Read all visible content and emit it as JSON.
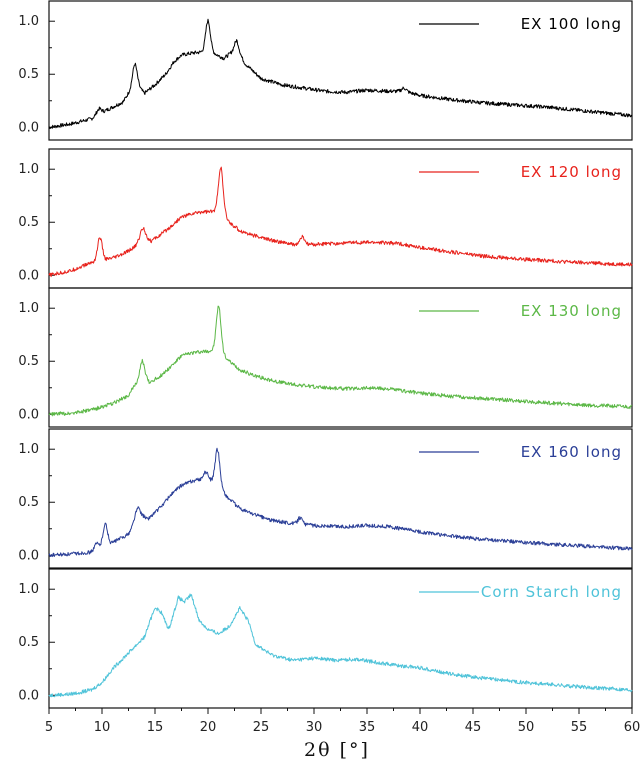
{
  "chart_data": {
    "type": "line",
    "xlabel": "2θ [°]",
    "xlim": [
      5,
      60
    ],
    "x_ticks": [
      "5",
      "10",
      "15",
      "20",
      "25",
      "30",
      "35",
      "40",
      "45",
      "50",
      "55",
      "60"
    ],
    "y_ticks": [
      "0.0",
      "0.5",
      "1.0"
    ],
    "ylim": [
      -0.12,
      1.2
    ],
    "legend_position": "top-right",
    "series": [
      {
        "name": "EX 100 long",
        "color": "#000000",
        "peaks": [
          [
            9.7,
            0.05
          ],
          [
            13.1,
            0.18
          ],
          [
            20.0,
            0.3
          ],
          [
            22.7,
            0.08
          ],
          [
            38.5,
            0.03
          ]
        ],
        "points": [
          [
            5,
            0.0
          ],
          [
            7,
            0.03
          ],
          [
            9,
            0.08
          ],
          [
            10,
            0.14
          ],
          [
            11,
            0.19
          ],
          [
            12,
            0.24
          ],
          [
            13.1,
            0.42
          ],
          [
            14,
            0.32
          ],
          [
            15,
            0.4
          ],
          [
            16,
            0.5
          ],
          [
            16.8,
            0.62
          ],
          [
            17.5,
            0.68
          ],
          [
            18.5,
            0.7
          ],
          [
            19.5,
            0.71
          ],
          [
            20.5,
            0.7
          ],
          [
            21.5,
            0.65
          ],
          [
            22.7,
            0.74
          ],
          [
            23.5,
            0.6
          ],
          [
            25,
            0.46
          ],
          [
            27,
            0.4
          ],
          [
            29,
            0.37
          ],
          [
            31,
            0.34
          ],
          [
            33,
            0.33
          ],
          [
            35,
            0.35
          ],
          [
            37,
            0.34
          ],
          [
            38.5,
            0.34
          ],
          [
            40,
            0.3
          ],
          [
            43,
            0.26
          ],
          [
            46,
            0.23
          ],
          [
            49,
            0.21
          ],
          [
            52,
            0.19
          ],
          [
            55,
            0.16
          ],
          [
            58,
            0.13
          ],
          [
            60,
            0.11
          ]
        ]
      },
      {
        "name": "EX 120 long",
        "color": "#e8231d",
        "peaks": [
          [
            9.8,
            0.22
          ],
          [
            13.8,
            0.08
          ],
          [
            21.2,
            0.4
          ],
          [
            28.9,
            0.07
          ]
        ],
        "points": [
          [
            5,
            0.0
          ],
          [
            6,
            0.02
          ],
          [
            7,
            0.04
          ],
          [
            8,
            0.08
          ],
          [
            9,
            0.12
          ],
          [
            10,
            0.14
          ],
          [
            11,
            0.16
          ],
          [
            12,
            0.2
          ],
          [
            13,
            0.26
          ],
          [
            14,
            0.38
          ],
          [
            14.6,
            0.32
          ],
          [
            15.5,
            0.38
          ],
          [
            16.5,
            0.46
          ],
          [
            17.5,
            0.55
          ],
          [
            18.5,
            0.58
          ],
          [
            19.5,
            0.6
          ],
          [
            20.5,
            0.6
          ],
          [
            21.2,
            0.62
          ],
          [
            22,
            0.5
          ],
          [
            23,
            0.42
          ],
          [
            24.5,
            0.37
          ],
          [
            26,
            0.33
          ],
          [
            28,
            0.29
          ],
          [
            30,
            0.29
          ],
          [
            32,
            0.3
          ],
          [
            34,
            0.31
          ],
          [
            36,
            0.31
          ],
          [
            38,
            0.3
          ],
          [
            40,
            0.26
          ],
          [
            43,
            0.22
          ],
          [
            46,
            0.18
          ],
          [
            50,
            0.15
          ],
          [
            55,
            0.12
          ],
          [
            60,
            0.1
          ]
        ]
      },
      {
        "name": "EX 130 long",
        "color": "#5cb847",
        "peaks": [
          [
            13.8,
            0.12
          ],
          [
            21.0,
            0.4
          ]
        ],
        "points": [
          [
            5,
            0.0
          ],
          [
            7,
            0.01
          ],
          [
            9,
            0.04
          ],
          [
            11,
            0.1
          ],
          [
            12.5,
            0.18
          ],
          [
            13.8,
            0.38
          ],
          [
            14.5,
            0.3
          ],
          [
            15.5,
            0.36
          ],
          [
            16.5,
            0.45
          ],
          [
            17.5,
            0.55
          ],
          [
            18.5,
            0.58
          ],
          [
            19.5,
            0.59
          ],
          [
            20.5,
            0.6
          ],
          [
            21,
            0.62
          ],
          [
            22,
            0.5
          ],
          [
            23,
            0.42
          ],
          [
            24.5,
            0.36
          ],
          [
            26,
            0.32
          ],
          [
            28,
            0.28
          ],
          [
            30,
            0.26
          ],
          [
            33,
            0.24
          ],
          [
            35,
            0.25
          ],
          [
            37,
            0.24
          ],
          [
            40,
            0.2
          ],
          [
            43,
            0.17
          ],
          [
            46,
            0.15
          ],
          [
            50,
            0.12
          ],
          [
            55,
            0.09
          ],
          [
            60,
            0.07
          ]
        ]
      },
      {
        "name": "EX 160 long",
        "color": "#2b3f97",
        "peaks": [
          [
            9.5,
            0.06
          ],
          [
            10.3,
            0.21
          ],
          [
            13.3,
            0.07
          ],
          [
            19.8,
            0.07
          ],
          [
            20.9,
            0.32
          ],
          [
            28.7,
            0.06
          ]
        ],
        "points": [
          [
            5,
            0.0
          ],
          [
            7,
            0.01
          ],
          [
            9,
            0.03
          ],
          [
            10,
            0.07
          ],
          [
            11,
            0.12
          ],
          [
            12.5,
            0.2
          ],
          [
            13.5,
            0.4
          ],
          [
            14.3,
            0.34
          ],
          [
            15.5,
            0.45
          ],
          [
            16.5,
            0.57
          ],
          [
            17.5,
            0.66
          ],
          [
            18.5,
            0.7
          ],
          [
            19.5,
            0.72
          ],
          [
            20.3,
            0.7
          ],
          [
            20.9,
            0.68
          ],
          [
            21.8,
            0.55
          ],
          [
            23,
            0.44
          ],
          [
            24.5,
            0.38
          ],
          [
            26,
            0.33
          ],
          [
            28,
            0.3
          ],
          [
            30,
            0.28
          ],
          [
            33,
            0.27
          ],
          [
            35,
            0.28
          ],
          [
            37,
            0.27
          ],
          [
            40,
            0.22
          ],
          [
            43,
            0.18
          ],
          [
            46,
            0.15
          ],
          [
            50,
            0.12
          ],
          [
            55,
            0.09
          ],
          [
            60,
            0.06
          ]
        ]
      },
      {
        "name": "Corn Starch long",
        "color": "#4fc3d9",
        "peaks": [],
        "points": [
          [
            5,
            0.0
          ],
          [
            7,
            0.01
          ],
          [
            9,
            0.05
          ],
          [
            10,
            0.12
          ],
          [
            11,
            0.25
          ],
          [
            12,
            0.35
          ],
          [
            13,
            0.45
          ],
          [
            14,
            0.55
          ],
          [
            15,
            0.83
          ],
          [
            15.6,
            0.78
          ],
          [
            16.3,
            0.62
          ],
          [
            17.2,
            0.92
          ],
          [
            17.8,
            0.88
          ],
          [
            18.4,
            0.95
          ],
          [
            19.2,
            0.7
          ],
          [
            20,
            0.62
          ],
          [
            21,
            0.58
          ],
          [
            22,
            0.65
          ],
          [
            23,
            0.82
          ],
          [
            23.8,
            0.7
          ],
          [
            24.5,
            0.48
          ],
          [
            26,
            0.38
          ],
          [
            28,
            0.33
          ],
          [
            30,
            0.35
          ],
          [
            32,
            0.33
          ],
          [
            34,
            0.34
          ],
          [
            36,
            0.31
          ],
          [
            38,
            0.28
          ],
          [
            40,
            0.26
          ],
          [
            43,
            0.2
          ],
          [
            46,
            0.16
          ],
          [
            50,
            0.12
          ],
          [
            55,
            0.08
          ],
          [
            60,
            0.05
          ]
        ]
      }
    ]
  }
}
